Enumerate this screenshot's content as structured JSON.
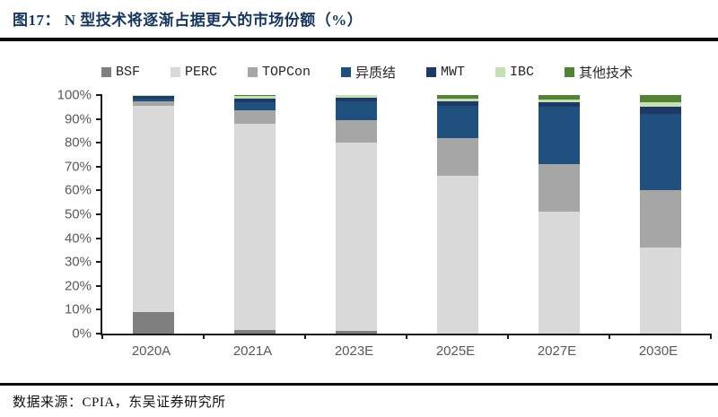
{
  "page": {
    "title": "图17： N 型技术将逐渐占据更大的市场份额（%）",
    "source": "数据来源：CPIA，东吴证券研究所"
  },
  "colors": {
    "title_navy": "#17365d",
    "axis_line": "#1a1a1a",
    "axis_text": "#595959",
    "divider": "#0a0a0a"
  },
  "chart_data": {
    "type": "bar",
    "stacked": true,
    "orientation": "vertical",
    "title": "N 型技术将逐渐占据更大的市场份额（%）",
    "xlabel": "",
    "ylabel": "",
    "ylim": [
      0,
      100
    ],
    "grid": false,
    "legend_position": "top",
    "categories": [
      "2020A",
      "2021A",
      "2023E",
      "2025E",
      "2027E",
      "2030E"
    ],
    "y_ticks": [
      "100%",
      "90%",
      "80%",
      "70%",
      "60%",
      "50%",
      "40%",
      "30%",
      "20%",
      "10%",
      "0%"
    ],
    "series": [
      {
        "name": "BSF",
        "color": "#7f7f7f",
        "values": [
          9,
          1.5,
          1,
          0,
          0,
          0
        ]
      },
      {
        "name": "PERC",
        "color": "#d9d9d9",
        "values": [
          86.5,
          86.5,
          79,
          66,
          51,
          36
        ]
      },
      {
        "name": "TOPCon",
        "color": "#a6a6a6",
        "values": [
          2,
          5.5,
          9.5,
          16,
          20,
          24
        ]
      },
      {
        "name": "异质结",
        "color": "#20517e",
        "values": [
          1,
          3.5,
          8,
          13.5,
          24,
          32
        ]
      },
      {
        "name": "MWT",
        "color": "#1f3864",
        "values": [
          1,
          1.5,
          1.3,
          1.8,
          2,
          3
        ]
      },
      {
        "name": "IBC",
        "color": "#c5e0b4",
        "values": [
          0.5,
          1,
          1.2,
          1.2,
          1,
          2
        ]
      },
      {
        "name": "其他技术",
        "color": "#538135",
        "values": [
          0,
          0.5,
          0,
          1.5,
          2,
          3
        ]
      }
    ]
  }
}
